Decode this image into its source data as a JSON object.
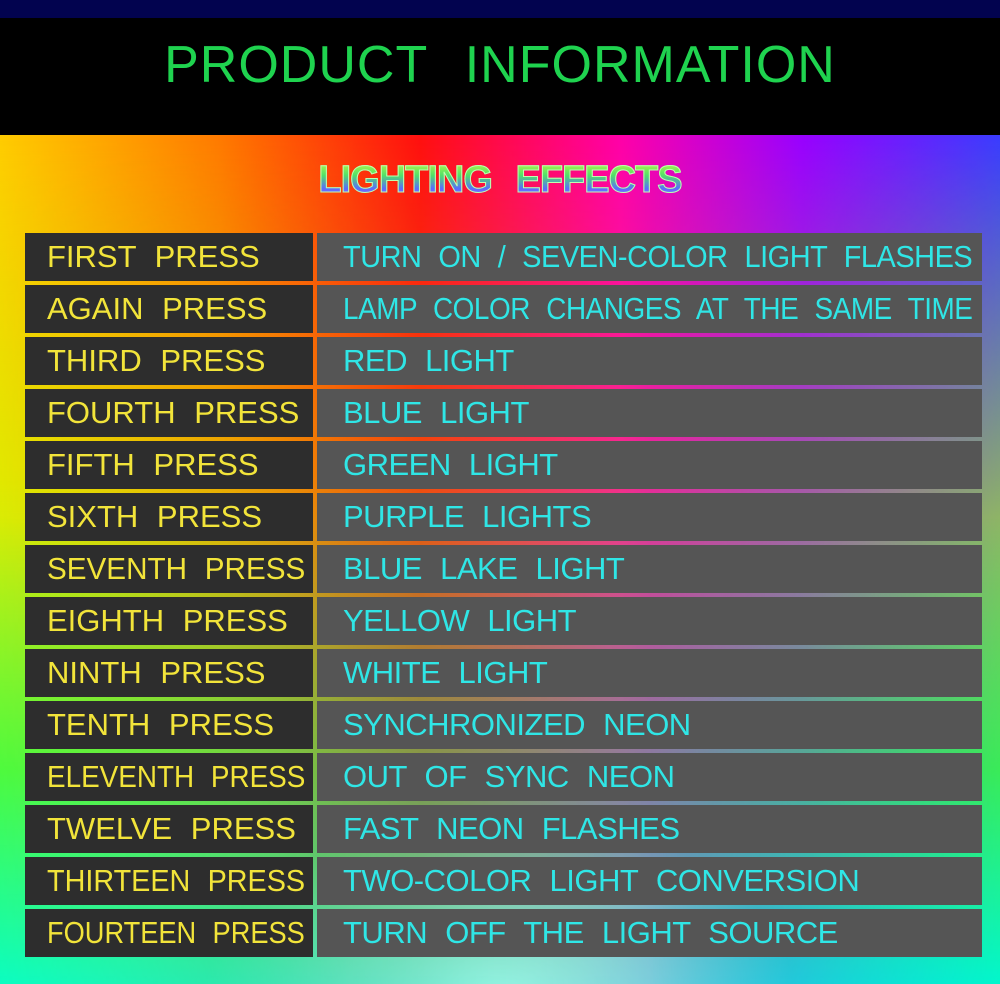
{
  "header": {
    "title": "PRODUCT  INFORMATION"
  },
  "subtitle": "LIGHTING  EFFECTS",
  "colors": {
    "title": "#1fd34f",
    "press_label": "#f2e43a",
    "effect_text": "#2fe6e6",
    "left_cell": "#2d2d2d",
    "right_cell": "#555555"
  },
  "rows": [
    {
      "press": "FIRST PRESS",
      "effect": "TURN ON / SEVEN-COLOR LIGHT FLASHES"
    },
    {
      "press": "AGAIN PRESS",
      "effect": "LAMP COLOR CHANGES AT THE SAME TIME"
    },
    {
      "press": "THIRD PRESS",
      "effect": "RED LIGHT"
    },
    {
      "press": "FOURTH PRESS",
      "effect": "BLUE LIGHT"
    },
    {
      "press": "FIFTH PRESS",
      "effect": "GREEN LIGHT"
    },
    {
      "press": "SIXTH PRESS",
      "effect": "PURPLE LIGHTS"
    },
    {
      "press": "SEVENTH PRESS",
      "effect": "BLUE LAKE LIGHT"
    },
    {
      "press": "EIGHTH PRESS",
      "effect": "YELLOW LIGHT"
    },
    {
      "press": "NINTH PRESS",
      "effect": "WHITE LIGHT"
    },
    {
      "press": "TENTH PRESS",
      "effect": "SYNCHRONIZED NEON"
    },
    {
      "press": "ELEVENTH PRESS",
      "effect": "OUT OF SYNC NEON"
    },
    {
      "press": "TWELVE PRESS",
      "effect": "FAST NEON FLASHES"
    },
    {
      "press": "THIRTEEN PRESS",
      "effect": "TWO-COLOR LIGHT CONVERSION"
    },
    {
      "press": "FOURTEEN PRESS",
      "effect": "TURN OFF THE LIGHT SOURCE"
    }
  ]
}
